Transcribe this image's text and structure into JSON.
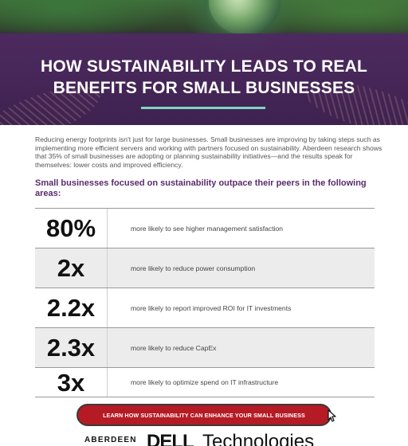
{
  "hero": {
    "title_line1": "HOW SUSTAINABILITY LEADS TO REAL",
    "title_line2": "BENEFITS FOR SMALL BUSINESSES"
  },
  "intro": "Reducing energy footprints isn't just for large businesses. Small businesses are improving by taking steps such as implementing more efficient servers and working with partners focused on sustainability. Aberdeen research shows that 35% of small businesses are adopting or planning sustainability initiatives—and the results speak for themselves: lower costs and improved efficiency.",
  "subhead": "Small businesses focused on sustainability outpace their peers in the following areas:",
  "stats": [
    {
      "value": "80%",
      "desc": "more likely to see higher management satisfaction"
    },
    {
      "value": "2x",
      "desc": "more likely to reduce power consumption"
    },
    {
      "value": "2.2x",
      "desc": "more likely to report improved ROI for IT investments"
    },
    {
      "value": "2.3x",
      "desc": "more likely to reduce CapEx"
    },
    {
      "value": "3x",
      "desc": "more likely to optimize spend on IT infrastructure"
    }
  ],
  "cta": {
    "label": "LEARN HOW  SUSTAINABILITY CAN ENHANCE YOUR SMALL BUSINESS"
  },
  "logos": {
    "aberdeen": "ABERDEEN",
    "dell": "DELL",
    "technologies": "Technologies"
  },
  "colors": {
    "accent_purple": "#5b2a6e",
    "rule_teal": "#7fd4c4",
    "cta_red": "#b51b24"
  }
}
